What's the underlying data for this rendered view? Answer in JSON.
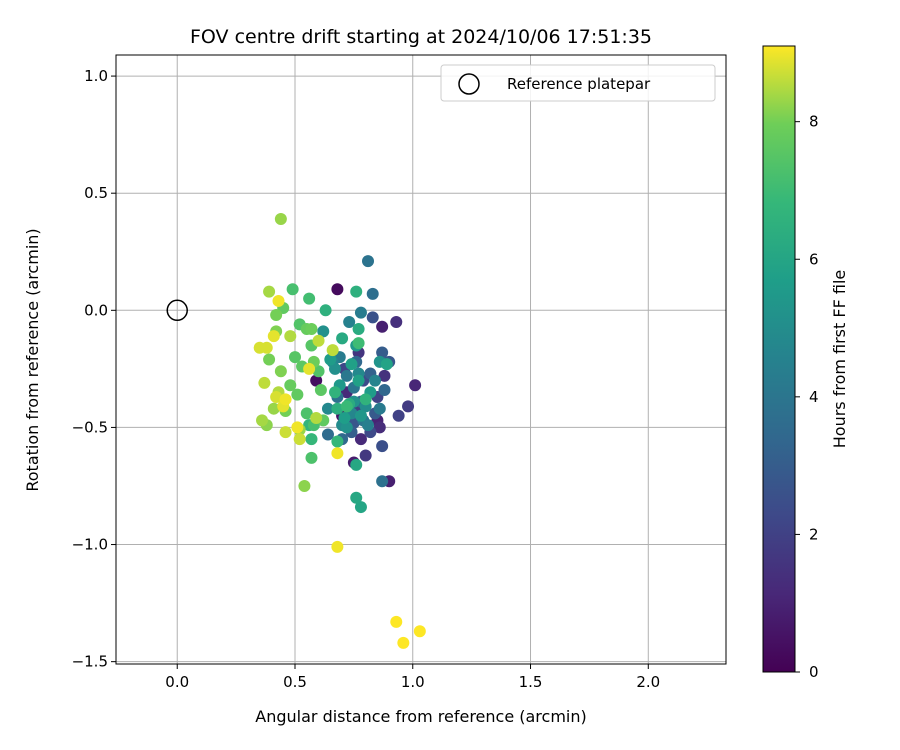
{
  "chart_data": {
    "type": "scatter",
    "title": "FOV centre drift starting at 2024/10/06 17:51:35",
    "xlabel": "Angular distance from reference (arcmin)",
    "ylabel": "Rotation from reference (arcmin)",
    "xlim": [
      -0.26,
      2.33
    ],
    "ylim": [
      -1.51,
      1.09
    ],
    "xticks": [
      0.0,
      0.5,
      1.0,
      1.5,
      2.0
    ],
    "xtick_labels": [
      "0.0",
      "0.5",
      "1.0",
      "1.5",
      "2.0"
    ],
    "yticks": [
      1.0,
      0.5,
      0.0,
      -0.5,
      -1.0,
      -1.5
    ],
    "ytick_labels": [
      "1.0",
      "0.5",
      "0.0",
      "−0.5",
      "−1.0",
      "−1.5"
    ],
    "grid": true,
    "legend": {
      "placement": "top-right",
      "entries": [
        "Reference platepar"
      ]
    },
    "reference_point": {
      "x": 0.0,
      "y": 0.0
    },
    "colorbar": {
      "label": "Hours from first FF file",
      "colormap": "viridis",
      "range": [
        0,
        9.1
      ],
      "ticks": [
        0,
        2,
        4,
        6,
        8
      ],
      "tick_labels": [
        "0",
        "2",
        "4",
        "6",
        "8"
      ]
    },
    "points": [
      [
        0.68,
        0.09,
        0.3
      ],
      [
        0.59,
        -0.3,
        0.4
      ],
      [
        0.7,
        -0.45,
        0.5
      ],
      [
        0.75,
        -0.65,
        0.8
      ],
      [
        0.87,
        -0.07,
        0.9
      ],
      [
        0.9,
        -0.73,
        0.9
      ],
      [
        1.01,
        -0.32,
        1.1
      ],
      [
        0.85,
        -0.47,
        1.0
      ],
      [
        0.93,
        -0.05,
        1.4
      ],
      [
        0.86,
        -0.5,
        1.3
      ],
      [
        0.78,
        -0.55,
        1.2
      ],
      [
        0.88,
        -0.28,
        1.5
      ],
      [
        0.72,
        -0.35,
        1.2
      ],
      [
        0.98,
        -0.41,
        1.8
      ],
      [
        0.77,
        -0.18,
        1.6
      ],
      [
        0.8,
        -0.62,
        1.7
      ],
      [
        0.94,
        -0.45,
        2.0
      ],
      [
        0.85,
        -0.37,
        2.1
      ],
      [
        0.76,
        -0.42,
        1.9
      ],
      [
        0.82,
        -0.52,
        2.3
      ],
      [
        0.87,
        -0.58,
        2.5
      ],
      [
        0.79,
        -0.3,
        2.4
      ],
      [
        0.83,
        -0.03,
        2.6
      ],
      [
        0.75,
        -0.48,
        2.7
      ],
      [
        0.9,
        -0.22,
        2.8
      ],
      [
        0.84,
        -0.44,
        2.9
      ],
      [
        0.71,
        -0.25,
        2.2
      ],
      [
        0.87,
        -0.18,
        3.0
      ],
      [
        0.82,
        -0.27,
        3.2
      ],
      [
        0.78,
        -0.39,
        3.3
      ],
      [
        0.74,
        -0.52,
        3.1
      ],
      [
        0.88,
        -0.34,
        3.4
      ],
      [
        0.7,
        -0.55,
        3.5
      ],
      [
        0.64,
        -0.53,
        3.6
      ],
      [
        0.76,
        -0.22,
        3.4
      ],
      [
        0.87,
        -0.73,
        3.8
      ],
      [
        0.81,
        0.21,
        3.9
      ],
      [
        0.83,
        0.07,
        3.7
      ],
      [
        0.68,
        -0.37,
        3.8
      ],
      [
        0.79,
        -0.47,
        4.0
      ],
      [
        0.72,
        -0.28,
        4.1
      ],
      [
        0.86,
        -0.42,
        4.2
      ],
      [
        0.75,
        -0.33,
        4.0
      ],
      [
        0.78,
        -0.01,
        4.3
      ],
      [
        0.69,
        -0.2,
        4.3
      ],
      [
        0.81,
        -0.49,
        4.4
      ],
      [
        0.73,
        -0.05,
        4.5
      ],
      [
        0.66,
        -0.22,
        4.6
      ],
      [
        0.74,
        -0.44,
        4.7
      ],
      [
        0.84,
        -0.3,
        4.6
      ],
      [
        0.64,
        -0.42,
        4.8
      ],
      [
        0.77,
        -0.27,
        4.8
      ],
      [
        0.7,
        -0.49,
        4.9
      ],
      [
        0.8,
        -0.41,
        5.0
      ],
      [
        0.67,
        -0.25,
        5.1
      ],
      [
        0.62,
        -0.09,
        5.1
      ],
      [
        0.75,
        -0.39,
        5.2
      ],
      [
        0.72,
        -0.5,
        5.2
      ],
      [
        0.86,
        -0.22,
        5.3
      ],
      [
        0.78,
        -0.45,
        5.4
      ],
      [
        0.69,
        -0.32,
        5.5
      ],
      [
        0.76,
        -0.15,
        5.5
      ],
      [
        0.82,
        -0.35,
        5.6
      ],
      [
        0.65,
        -0.21,
        5.6
      ],
      [
        0.71,
        -0.46,
        5.7
      ],
      [
        0.77,
        -0.3,
        5.8
      ],
      [
        0.74,
        -0.23,
        5.8
      ],
      [
        0.89,
        -0.23,
        5.9
      ],
      [
        0.78,
        -0.84,
        6.0
      ],
      [
        0.76,
        -0.8,
        6.1
      ],
      [
        0.76,
        -0.66,
        6.1
      ],
      [
        0.7,
        -0.12,
        6.2
      ],
      [
        0.73,
        -0.4,
        6.3
      ],
      [
        0.77,
        -0.08,
        6.3
      ],
      [
        0.68,
        -0.42,
        6.4
      ],
      [
        0.76,
        0.08,
        6.5
      ],
      [
        0.63,
        0.0,
        6.5
      ],
      [
        0.8,
        -0.38,
        6.6
      ],
      [
        0.67,
        -0.35,
        6.6
      ],
      [
        0.56,
        -0.49,
        6.7
      ],
      [
        0.57,
        -0.55,
        6.8
      ],
      [
        0.68,
        -0.56,
        6.8
      ],
      [
        0.72,
        -0.41,
        6.9
      ],
      [
        0.77,
        -0.14,
        7.0
      ],
      [
        0.56,
        0.05,
        7.1
      ],
      [
        0.49,
        0.09,
        7.2
      ],
      [
        0.55,
        -0.44,
        7.3
      ],
      [
        0.57,
        -0.63,
        7.3
      ],
      [
        0.58,
        -0.49,
        7.2
      ],
      [
        0.6,
        -0.26,
        7.4
      ],
      [
        0.52,
        -0.06,
        7.4
      ],
      [
        0.57,
        -0.15,
        7.5
      ],
      [
        0.5,
        -0.2,
        7.5
      ],
      [
        0.53,
        -0.24,
        7.6
      ],
      [
        0.61,
        -0.34,
        7.6
      ],
      [
        0.62,
        -0.47,
        7.7
      ],
      [
        0.45,
        0.01,
        7.7
      ],
      [
        0.51,
        -0.36,
        7.7
      ],
      [
        0.55,
        -0.08,
        7.8
      ],
      [
        0.48,
        -0.32,
        7.8
      ],
      [
        0.58,
        -0.22,
        7.9
      ],
      [
        0.57,
        -0.08,
        7.9
      ],
      [
        0.42,
        -0.02,
        8.0
      ],
      [
        0.46,
        -0.43,
        8.0
      ],
      [
        0.39,
        -0.21,
        8.0
      ],
      [
        0.42,
        -0.09,
        8.1
      ],
      [
        0.44,
        -0.26,
        8.1
      ],
      [
        0.54,
        -0.75,
        8.2
      ],
      [
        0.38,
        -0.49,
        8.2
      ],
      [
        0.52,
        -0.51,
        8.3
      ],
      [
        0.44,
        0.39,
        8.3
      ],
      [
        0.41,
        -0.42,
        8.3
      ],
      [
        0.36,
        -0.47,
        8.4
      ],
      [
        0.39,
        0.08,
        8.4
      ],
      [
        0.48,
        -0.11,
        8.5
      ],
      [
        0.59,
        -0.46,
        8.5
      ],
      [
        0.43,
        -0.35,
        8.5
      ],
      [
        0.6,
        -0.13,
        8.6
      ],
      [
        0.66,
        -0.17,
        8.6
      ],
      [
        0.37,
        -0.31,
        8.6
      ],
      [
        0.46,
        -0.52,
        8.7
      ],
      [
        0.52,
        -0.55,
        8.7
      ],
      [
        0.38,
        -0.16,
        8.8
      ],
      [
        0.35,
        -0.16,
        8.8
      ],
      [
        0.42,
        -0.37,
        8.8
      ],
      [
        0.45,
        -0.41,
        8.9
      ],
      [
        0.41,
        -0.11,
        8.9
      ],
      [
        0.56,
        -0.25,
        8.9
      ],
      [
        0.51,
        -0.5,
        9.0
      ],
      [
        0.46,
        -0.38,
        9.0
      ],
      [
        0.43,
        0.04,
        9.0
      ],
      [
        0.68,
        -1.01,
        9.0
      ],
      [
        0.68,
        -0.61,
        9.0
      ],
      [
        0.93,
        -1.33,
        9.1
      ],
      [
        0.96,
        -1.42,
        9.1
      ],
      [
        1.03,
        -1.37,
        9.1
      ]
    ]
  }
}
